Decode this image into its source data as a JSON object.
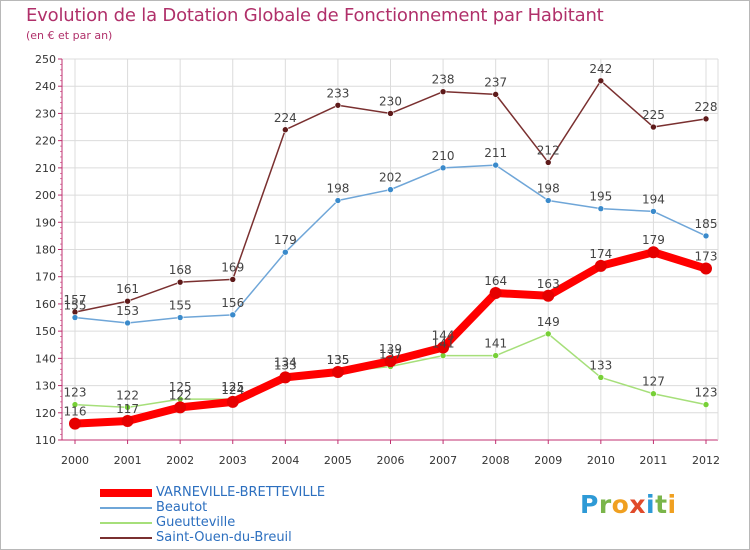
{
  "title": "Evolution de la Dotation Globale de Fonctionnement par Habitant",
  "subtitle": "(en € et par an)",
  "chart_data": {
    "type": "line",
    "title": "Evolution de la Dotation Globale de Fonctionnement par Habitant",
    "subtitle": "(en € et par an)",
    "xlabel": "",
    "ylabel": "",
    "x": [
      "2000",
      "2001",
      "2002",
      "2003",
      "2004",
      "2005",
      "2006",
      "2007",
      "2008",
      "2009",
      "2010",
      "2011",
      "2012"
    ],
    "ylim": [
      110,
      250
    ],
    "yticks": [
      110,
      120,
      130,
      140,
      150,
      160,
      170,
      180,
      190,
      200,
      210,
      220,
      230,
      240,
      250
    ],
    "grid": true,
    "legend_position": "bottom-left",
    "series": [
      {
        "name": "VARNEVILLE-BRETTEVILLE",
        "color": "#ff0000",
        "marker": "#e60000",
        "width": 8,
        "values": [
          116,
          117,
          122,
          124,
          133,
          135,
          139,
          144,
          164,
          163,
          174,
          179,
          173
        ]
      },
      {
        "name": "Beautot",
        "color": "#6fa6d8",
        "marker": "#3a8acb",
        "width": 1.5,
        "values": [
          155,
          153,
          155,
          156,
          179,
          198,
          202,
          210,
          211,
          198,
          195,
          194,
          185
        ]
      },
      {
        "name": "Gueutteville",
        "color": "#a6df7a",
        "marker": "#77d037",
        "width": 1.5,
        "values": [
          123,
          122,
          125,
          125,
          134,
          135,
          137,
          141,
          141,
          149,
          133,
          127,
          123
        ]
      },
      {
        "name": "Saint-Ouen-du-Breuil",
        "color": "#7a3030",
        "marker": "#5e1a1a",
        "width": 1.5,
        "values": [
          157,
          161,
          168,
          169,
          224,
          233,
          230,
          238,
          237,
          212,
          242,
          225,
          228
        ]
      }
    ]
  },
  "logo": {
    "p": "P",
    "r": "r",
    "o": "o",
    "x": "x",
    "i1": "i",
    "t": "t",
    "i2": "i"
  }
}
